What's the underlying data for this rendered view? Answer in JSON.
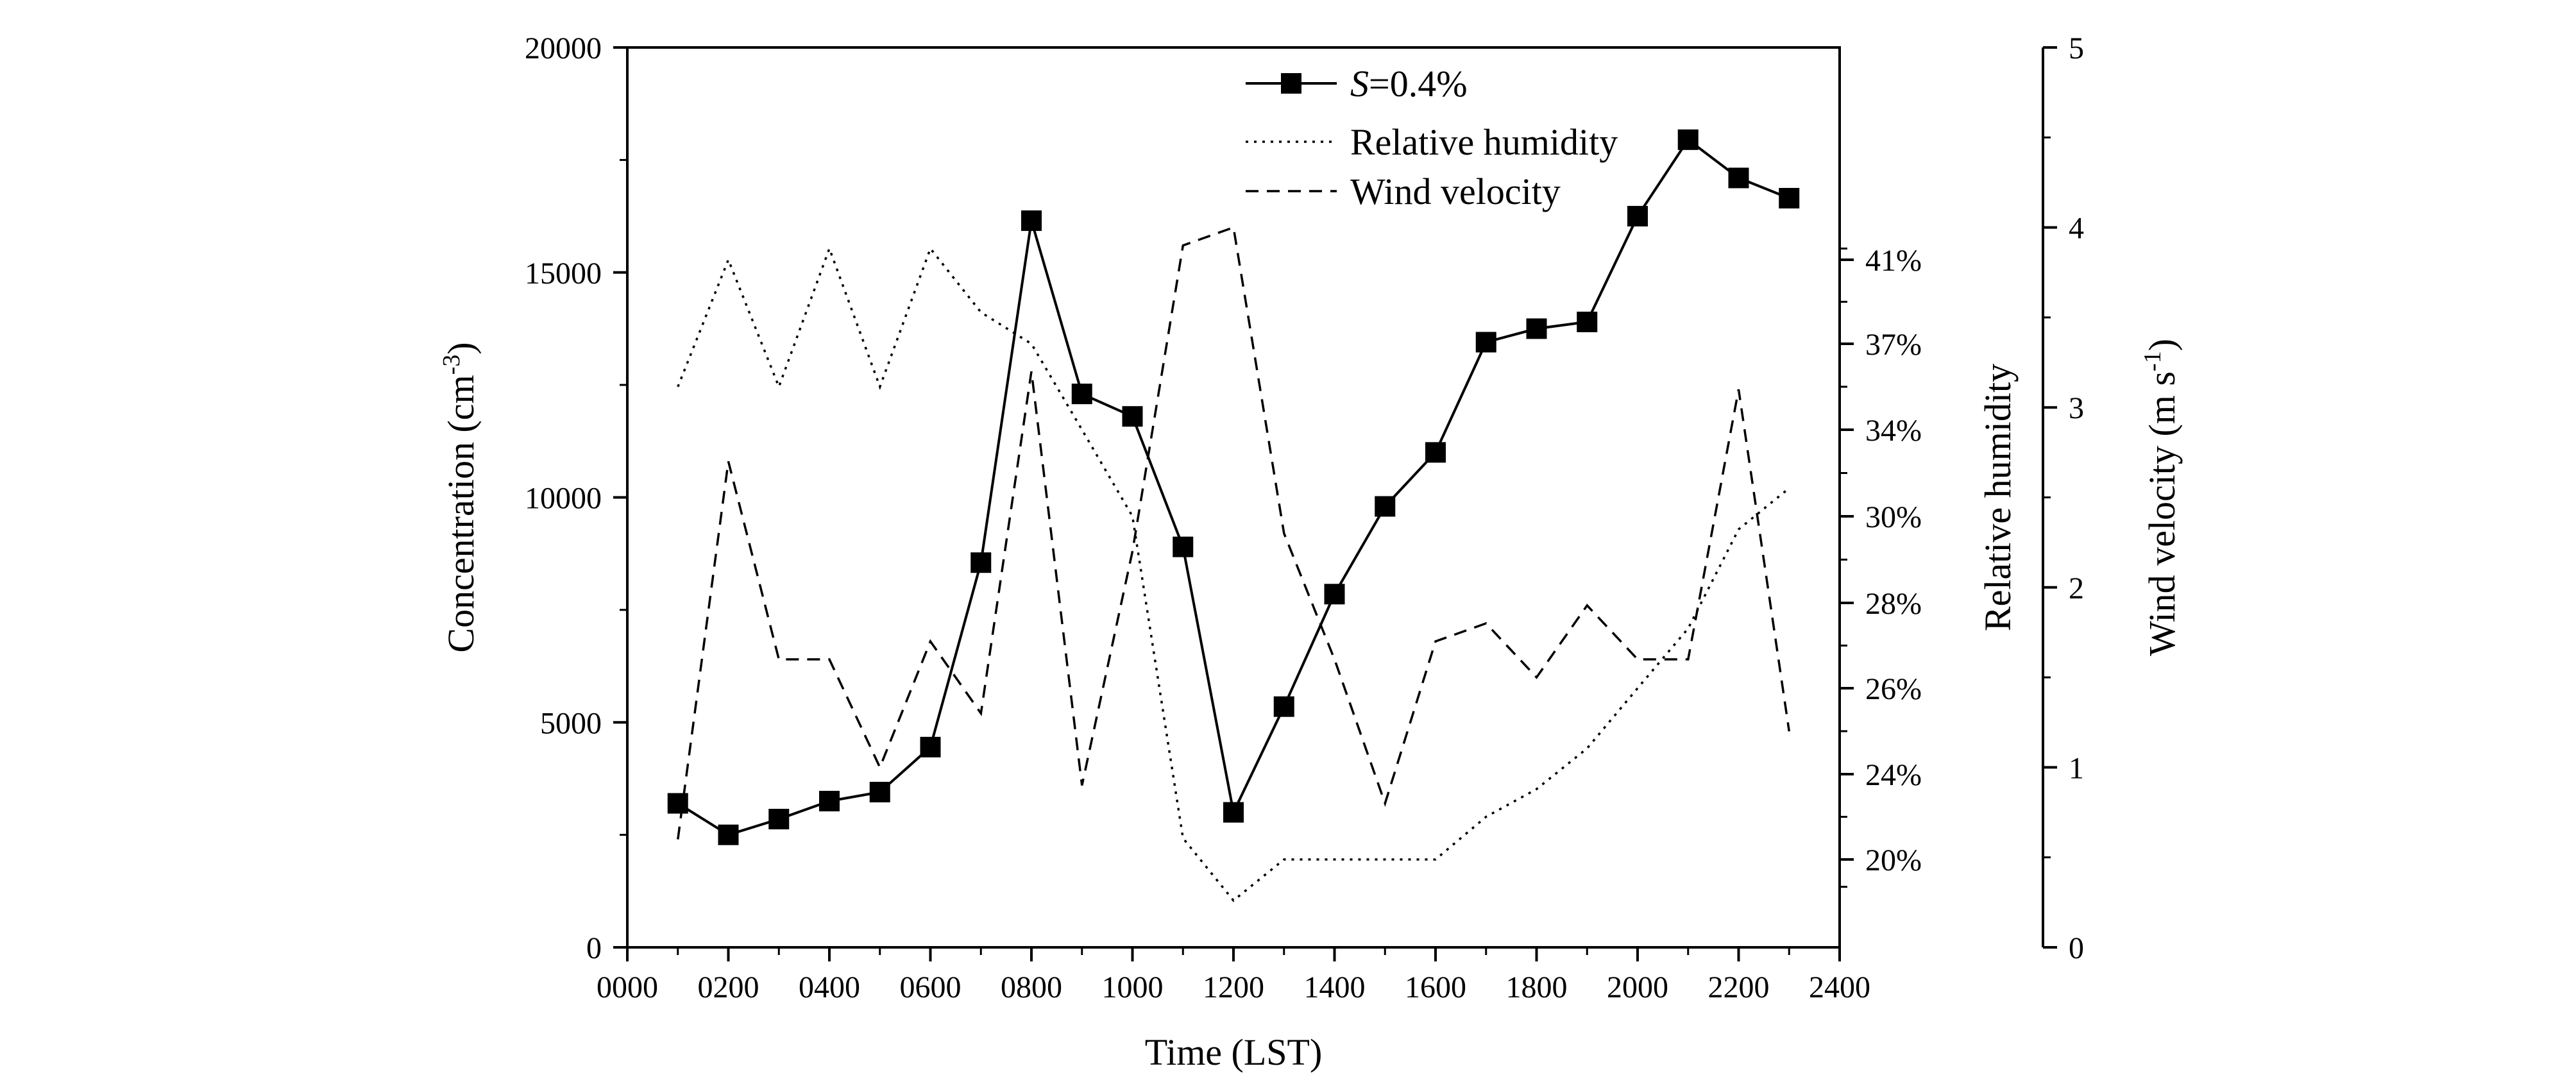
{
  "chart_data": {
    "type": "line",
    "x_axis": {
      "label": "Time (LST)",
      "range": [
        0,
        2400
      ],
      "ticks": [
        0,
        200,
        400,
        600,
        800,
        1000,
        1200,
        1400,
        1600,
        1800,
        2000,
        2200,
        2400
      ],
      "tick_labels": [
        "0000",
        "0200",
        "0400",
        "0600",
        "0800",
        "1000",
        "1200",
        "1400",
        "1600",
        "1800",
        "2000",
        "2200",
        "2400"
      ]
    },
    "y_left": {
      "label_main": "Concentration (cm",
      "label_sup": "-3",
      "label_end": ")",
      "range": [
        0,
        20000
      ],
      "ticks": [
        0,
        5000,
        10000,
        15000,
        20000
      ],
      "tick_labels": [
        "0",
        "5000",
        "10000",
        "15000",
        "20000"
      ]
    },
    "y_rh": {
      "label": "Relative humidity",
      "tick_values": [
        20,
        24,
        26,
        28,
        30,
        34,
        37,
        41
      ],
      "tick_labels": [
        "20%",
        "24%",
        "26%",
        "28%",
        "30%",
        "34%",
        "37%",
        "41%"
      ]
    },
    "y_wind": {
      "label_main": "Wind velocity (m s",
      "label_sup": "-1",
      "label_end": ")",
      "range": [
        0,
        5
      ],
      "ticks": [
        0,
        1,
        2,
        3,
        4,
        5
      ],
      "tick_labels": [
        "0",
        "1",
        "2",
        "3",
        "4",
        "5"
      ]
    },
    "x": [
      100,
      200,
      300,
      400,
      500,
      600,
      700,
      800,
      900,
      1000,
      1100,
      1200,
      1300,
      1400,
      1500,
      1600,
      1700,
      1800,
      1900,
      2000,
      2100,
      2200,
      2300
    ],
    "series": [
      {
        "name": "S=0.4%",
        "name_italic": "S",
        "name_rest": "=0.4%",
        "style": "solid-square",
        "axis": "left",
        "values": [
          3200,
          2500,
          2850,
          3250,
          3450,
          4450,
          8550,
          16150,
          12300,
          11800,
          8900,
          3000,
          5350,
          7850,
          9800,
          11000,
          13450,
          13750,
          13900,
          16250,
          17950,
          17100,
          16650
        ]
      },
      {
        "name": "Relative humidity",
        "style": "dotted",
        "axis": "rh",
        "values": [
          35.5,
          41,
          35.5,
          41.5,
          35.5,
          41.5,
          38.5,
          37,
          34,
          30,
          21,
          18.5,
          20,
          20,
          20,
          20,
          22,
          23.3,
          24.6,
          26,
          27.4,
          29.7,
          31.3
        ]
      },
      {
        "name": "Wind velocity",
        "style": "dashed",
        "axis": "wind",
        "values": [
          0.6,
          2.7,
          1.6,
          1.6,
          1.0,
          1.7,
          1.3,
          3.2,
          0.9,
          2.2,
          3.9,
          4.0,
          2.3,
          1.6,
          0.8,
          1.7,
          1.8,
          1.5,
          1.9,
          1.6,
          1.6,
          3.1,
          1.2
        ]
      }
    ],
    "grid": false,
    "legend_position": "top-center"
  },
  "colors": {
    "line": "#000000",
    "background": "#ffffff"
  }
}
